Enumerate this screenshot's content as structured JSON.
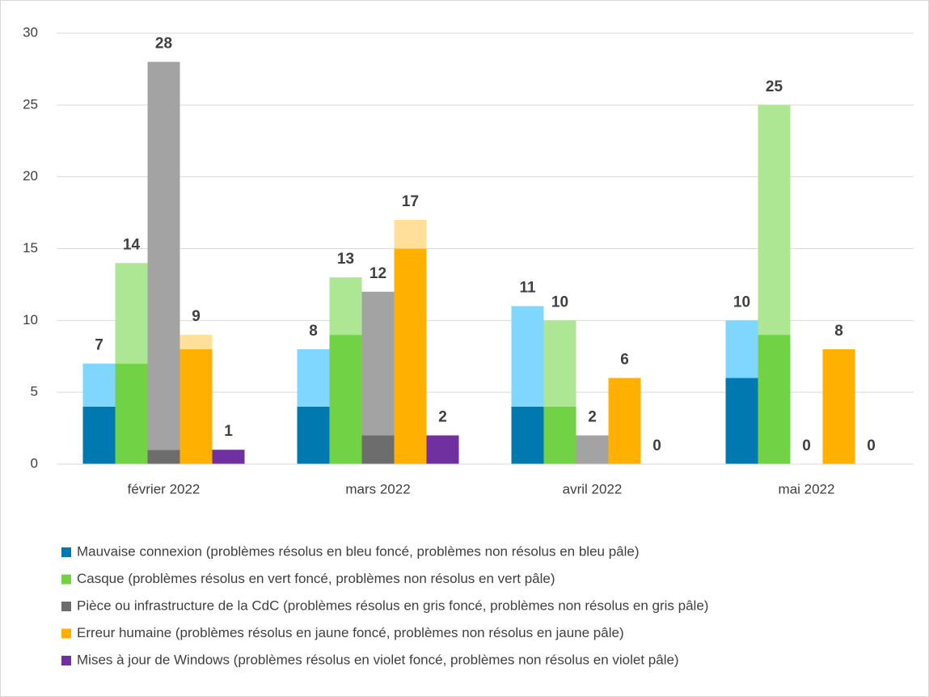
{
  "chart_data": {
    "type": "grouped-stacked-bar",
    "categories": [
      "février 2022",
      "mars 2022",
      "avril 2022",
      "mai 2022"
    ],
    "ylim": [
      0,
      30
    ],
    "yticks": [
      0,
      5,
      10,
      15,
      20,
      25,
      30
    ],
    "grid": true,
    "series": [
      {
        "name": "Mauvaise connexion (problèmes résolus en bleu foncé, problèmes non résolus en bleu pâle)",
        "color": "#0079b0",
        "pale_color": "#7fd6ff",
        "values": [
          4,
          4,
          4,
          6
        ],
        "unresolved": [
          3,
          4,
          7,
          4
        ],
        "totals": [
          7,
          8,
          11,
          10
        ]
      },
      {
        "name": "Casque (problèmes résolus en vert foncé, problèmes non résolus en vert pâle)",
        "color": "#72d246",
        "pale_color": "#ade793",
        "values": [
          7,
          9,
          4,
          9
        ],
        "unresolved": [
          7,
          4,
          6,
          16
        ],
        "totals": [
          14,
          13,
          10,
          25
        ]
      },
      {
        "name": "Pièce ou infrastructure de la CdC (problèmes résolus en gris foncé, problèmes non résolus en gris pâle)",
        "color": "#6d6d6d",
        "pale_color": "#a3a3a3",
        "values": [
          1,
          2,
          0,
          0
        ],
        "unresolved": [
          27,
          10,
          2,
          0
        ],
        "totals": [
          28,
          12,
          2,
          0
        ]
      },
      {
        "name": "Erreur humaine (problèmes résolus en jaune foncé, problèmes non résolus en jaune pâle)",
        "color": "#ffb000",
        "pale_color": "#ffdf99",
        "values": [
          8,
          15,
          6,
          8
        ],
        "unresolved": [
          1,
          2,
          0,
          0
        ],
        "totals": [
          9,
          17,
          6,
          8
        ]
      },
      {
        "name": "Mises à jour de Windows (problèmes résolus en violet foncé, problèmes non résolus en violet pâle)",
        "color": "#7030a0",
        "pale_color": "#c09ce0",
        "values": [
          1,
          2,
          0,
          0
        ],
        "unresolved": [
          0,
          0,
          0,
          0
        ],
        "totals": [
          1,
          2,
          0,
          0
        ]
      }
    ]
  }
}
